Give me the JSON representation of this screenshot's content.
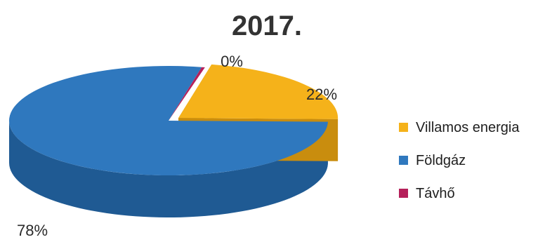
{
  "chart_data": {
    "type": "pie",
    "title": "2017.",
    "three_d": true,
    "categories": [
      "Villamos energia",
      "Földgáz",
      "Távhő"
    ],
    "values": [
      22,
      78,
      0
    ],
    "data_labels": [
      "22%",
      "78%",
      "0%"
    ],
    "colors": [
      "#f5b21a",
      "#2f78be",
      "#b5205a"
    ],
    "side_colors": [
      "#c98d0e",
      "#1f5a93",
      "#7a1440"
    ],
    "legend_position": "right"
  }
}
